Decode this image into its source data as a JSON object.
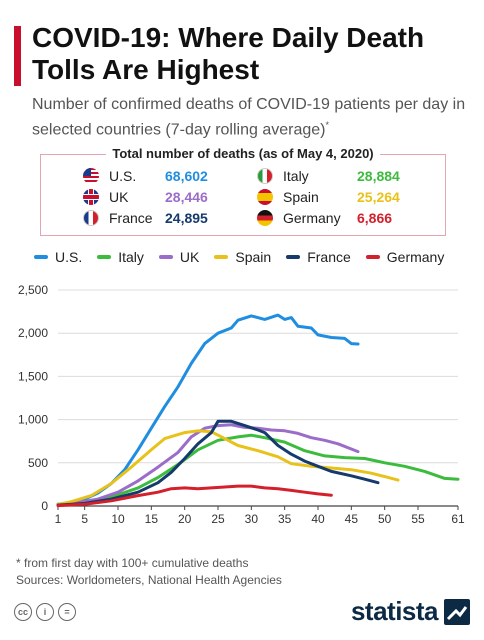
{
  "header": {
    "title": "COVID-19: Where Daily Death Tolls Are Highest",
    "subtitle": "Number of confirmed deaths of COVID-19 patients per day in selected countries (7-day rolling average)",
    "subtitle_mark": "*"
  },
  "totals": {
    "heading": "Total number of deaths (as of May 4, 2020)",
    "rows": [
      {
        "country": "U.S.",
        "value": "68,602",
        "color": "#1f8de0"
      },
      {
        "country": "Italy",
        "value": "28,884",
        "color": "#3dbb3d"
      },
      {
        "country": "UK",
        "value": "28,446",
        "color": "#9b6cc8"
      },
      {
        "country": "Spain",
        "value": "25,264",
        "color": "#e8c21a"
      },
      {
        "country": "France",
        "value": "24,895",
        "color": "#153a6b"
      },
      {
        "country": "Germany",
        "value": "6,866",
        "color": "#d4202b"
      }
    ]
  },
  "flags": [
    "us-flag-icon",
    "italy-flag-icon",
    "uk-flag-icon",
    "spain-flag-icon",
    "france-flag-icon",
    "germany-flag-icon"
  ],
  "chart_data": {
    "type": "line",
    "xlabel": "",
    "ylabel": "",
    "xlim": [
      1,
      61
    ],
    "ylim": [
      0,
      2500
    ],
    "x_ticks": [
      1,
      5,
      10,
      15,
      20,
      25,
      30,
      35,
      40,
      45,
      50,
      55,
      61
    ],
    "y_ticks": [
      0,
      500,
      1000,
      1500,
      2000,
      2500
    ],
    "y_tick_labels": [
      "0",
      "500",
      "1,000",
      "1,500",
      "2,000",
      "2,500"
    ],
    "grid": true,
    "legend_position": "top",
    "series": [
      {
        "name": "U.S.",
        "color": "#1f8de0",
        "points": [
          [
            1,
            20
          ],
          [
            3,
            40
          ],
          [
            5,
            80
          ],
          [
            7,
            150
          ],
          [
            9,
            260
          ],
          [
            11,
            420
          ],
          [
            13,
            650
          ],
          [
            15,
            900
          ],
          [
            17,
            1150
          ],
          [
            19,
            1380
          ],
          [
            21,
            1650
          ],
          [
            23,
            1880
          ],
          [
            25,
            2000
          ],
          [
            27,
            2060
          ],
          [
            28,
            2150
          ],
          [
            30,
            2200
          ],
          [
            32,
            2160
          ],
          [
            34,
            2210
          ],
          [
            35,
            2160
          ],
          [
            36,
            2180
          ],
          [
            37,
            2080
          ],
          [
            39,
            2060
          ],
          [
            40,
            1980
          ],
          [
            42,
            1950
          ],
          [
            44,
            1940
          ],
          [
            45,
            1880
          ],
          [
            46,
            1875
          ]
        ]
      },
      {
        "name": "Italy",
        "color": "#3dbb3d",
        "points": [
          [
            1,
            20
          ],
          [
            4,
            40
          ],
          [
            7,
            70
          ],
          [
            10,
            130
          ],
          [
            13,
            210
          ],
          [
            16,
            330
          ],
          [
            19,
            480
          ],
          [
            22,
            650
          ],
          [
            25,
            760
          ],
          [
            28,
            800
          ],
          [
            30,
            820
          ],
          [
            32,
            790
          ],
          [
            35,
            740
          ],
          [
            38,
            640
          ],
          [
            41,
            580
          ],
          [
            44,
            560
          ],
          [
            47,
            550
          ],
          [
            50,
            500
          ],
          [
            53,
            460
          ],
          [
            56,
            400
          ],
          [
            59,
            320
          ],
          [
            61,
            310
          ]
        ]
      },
      {
        "name": "UK",
        "color": "#9b6cc8",
        "points": [
          [
            1,
            20
          ],
          [
            4,
            40
          ],
          [
            7,
            80
          ],
          [
            10,
            160
          ],
          [
            13,
            290
          ],
          [
            16,
            450
          ],
          [
            19,
            620
          ],
          [
            21,
            800
          ],
          [
            23,
            900
          ],
          [
            25,
            930
          ],
          [
            27,
            940
          ],
          [
            29,
            910
          ],
          [
            31,
            900
          ],
          [
            33,
            880
          ],
          [
            35,
            870
          ],
          [
            37,
            840
          ],
          [
            39,
            790
          ],
          [
            41,
            760
          ],
          [
            43,
            720
          ],
          [
            45,
            660
          ],
          [
            46,
            630
          ]
        ]
      },
      {
        "name": "Spain",
        "color": "#e8c21a",
        "points": [
          [
            1,
            20
          ],
          [
            3,
            50
          ],
          [
            6,
            120
          ],
          [
            9,
            260
          ],
          [
            12,
            450
          ],
          [
            15,
            650
          ],
          [
            17,
            780
          ],
          [
            20,
            850
          ],
          [
            22,
            870
          ],
          [
            24,
            860
          ],
          [
            26,
            780
          ],
          [
            28,
            700
          ],
          [
            31,
            640
          ],
          [
            34,
            570
          ],
          [
            36,
            490
          ],
          [
            39,
            460
          ],
          [
            42,
            440
          ],
          [
            45,
            420
          ],
          [
            48,
            380
          ],
          [
            50,
            340
          ],
          [
            52,
            300
          ]
        ]
      },
      {
        "name": "France",
        "color": "#153a6b",
        "points": [
          [
            1,
            10
          ],
          [
            5,
            30
          ],
          [
            9,
            80
          ],
          [
            13,
            160
          ],
          [
            16,
            270
          ],
          [
            18,
            390
          ],
          [
            20,
            550
          ],
          [
            22,
            720
          ],
          [
            24,
            850
          ],
          [
            25,
            980
          ],
          [
            27,
            980
          ],
          [
            29,
            930
          ],
          [
            31,
            880
          ],
          [
            32,
            850
          ],
          [
            34,
            700
          ],
          [
            36,
            600
          ],
          [
            38,
            520
          ],
          [
            40,
            460
          ],
          [
            42,
            400
          ],
          [
            45,
            350
          ],
          [
            47,
            310
          ],
          [
            49,
            270
          ]
        ]
      },
      {
        "name": "Germany",
        "color": "#d4202b",
        "points": [
          [
            1,
            5
          ],
          [
            5,
            20
          ],
          [
            9,
            60
          ],
          [
            13,
            120
          ],
          [
            16,
            160
          ],
          [
            18,
            200
          ],
          [
            20,
            210
          ],
          [
            22,
            200
          ],
          [
            24,
            210
          ],
          [
            26,
            220
          ],
          [
            28,
            230
          ],
          [
            30,
            230
          ],
          [
            32,
            210
          ],
          [
            34,
            200
          ],
          [
            36,
            180
          ],
          [
            38,
            160
          ],
          [
            40,
            140
          ],
          [
            42,
            125
          ]
        ]
      }
    ]
  },
  "footer": {
    "footnote": "* from first day with 100+ cumulative deaths",
    "sources": "Sources: Worldometers, National Health Agencies",
    "license_icons": [
      "cc",
      "i",
      "="
    ],
    "brand": "statista"
  }
}
